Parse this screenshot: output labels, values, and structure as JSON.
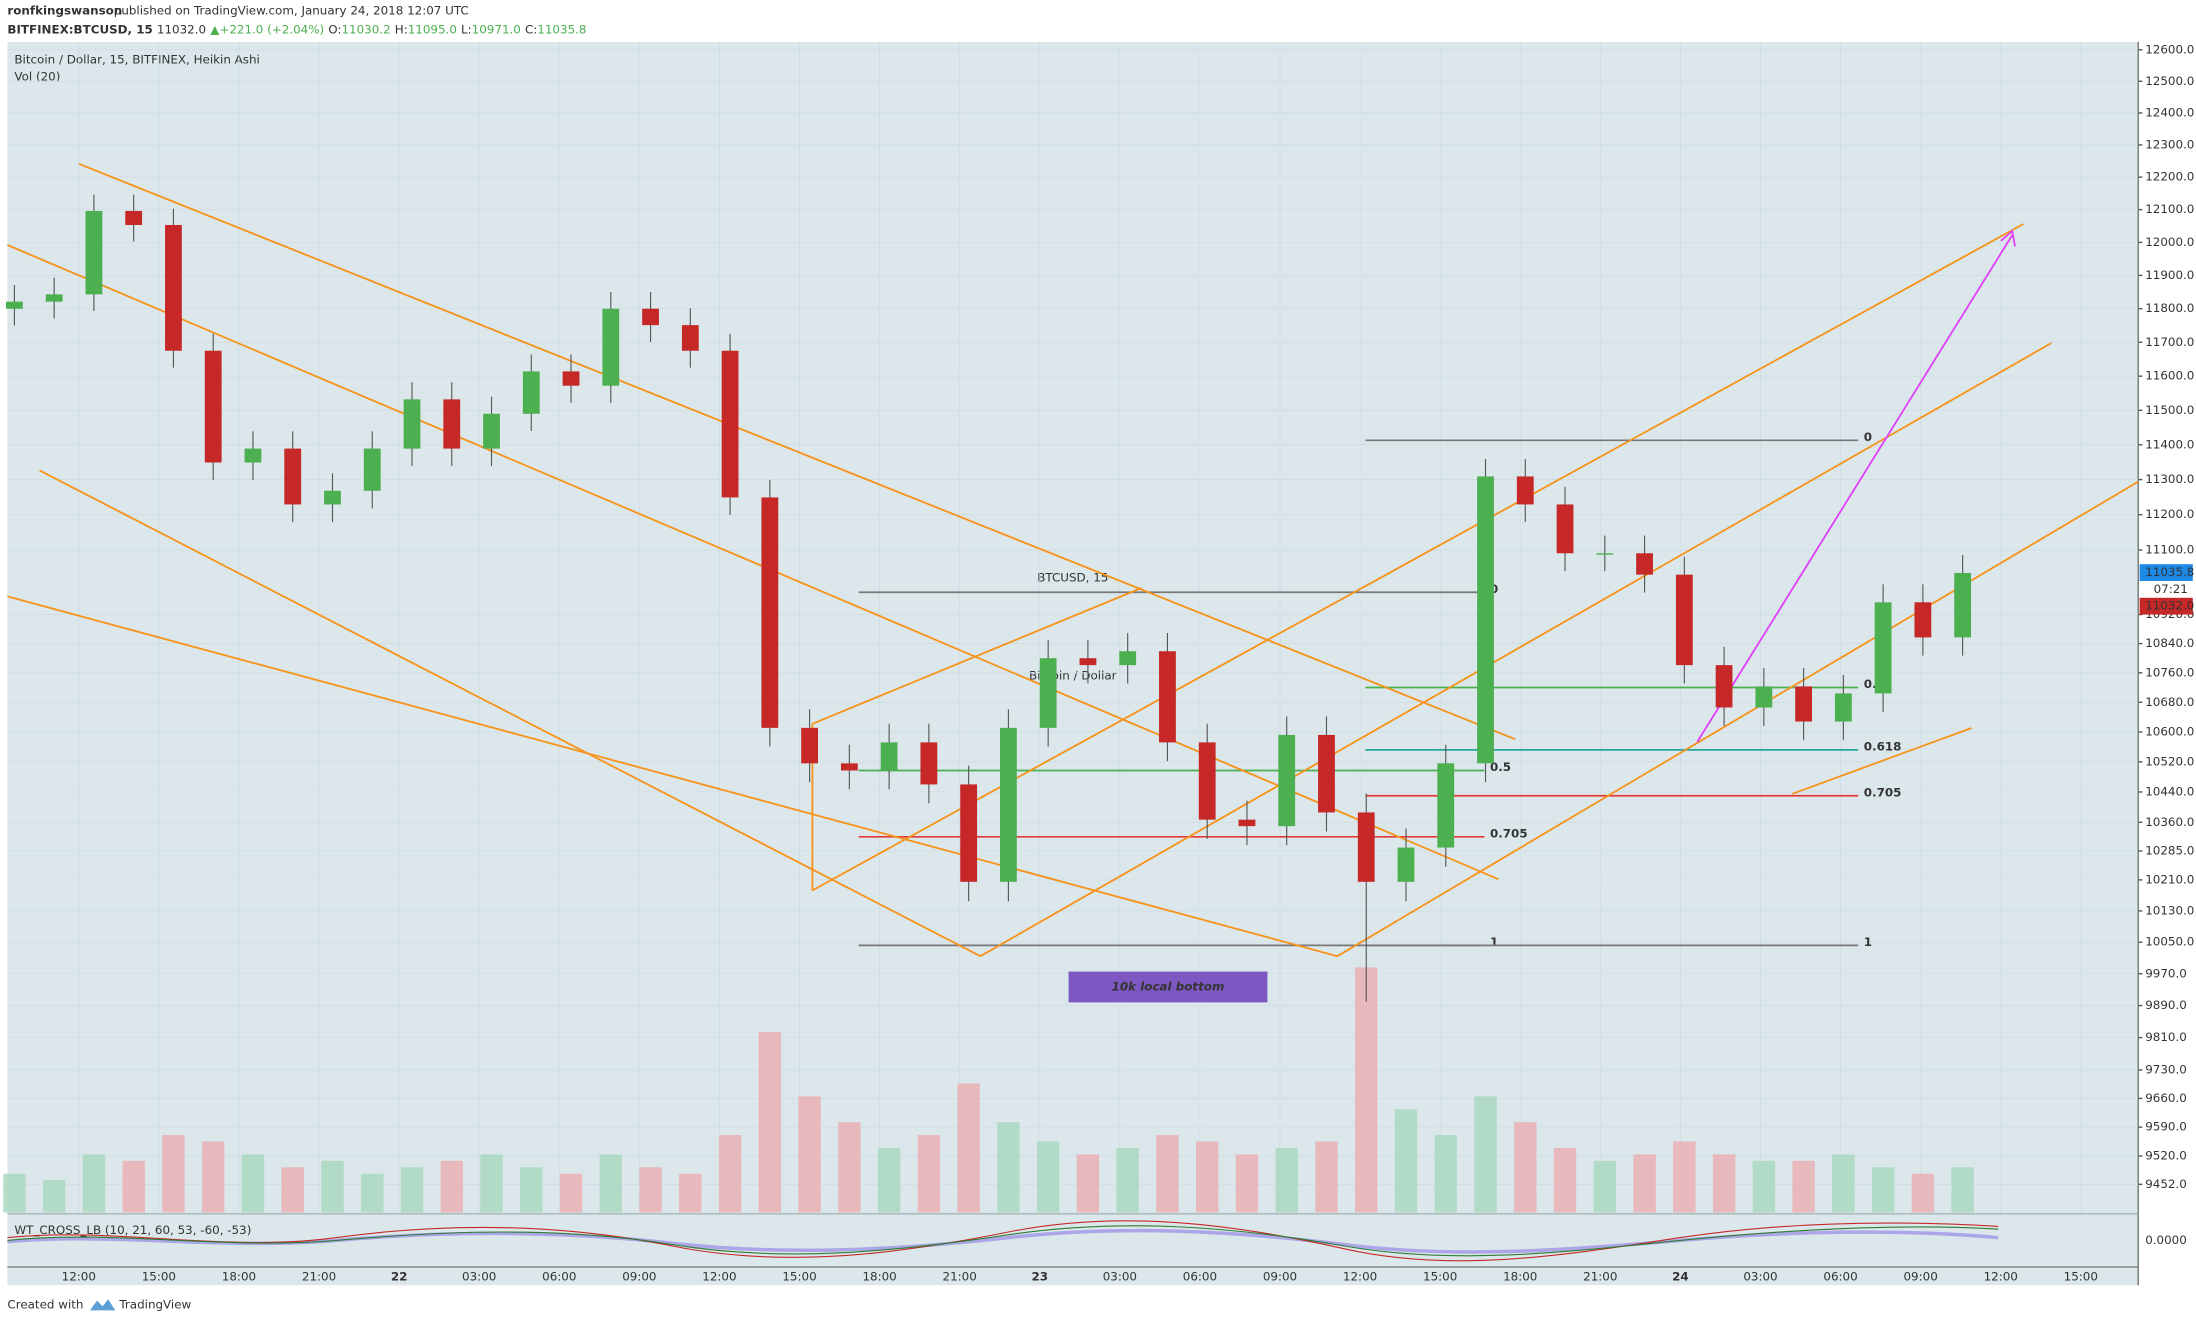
{
  "header": {
    "publisher": "ronfkingswanson",
    "published": "published on TradingView.com, January 24, 2018 12:07 UTC",
    "symbol": "BITFINEX:BTCUSD, 15",
    "last": "11032.0",
    "arrow": "▲",
    "change": "+221.0 (+2.04%)",
    "o_label": "O:",
    "o": "11030.2",
    "h_label": "H:",
    "h": "11095.0",
    "l_label": "L:",
    "l": "10971.0",
    "c_label": "C:",
    "c": "11035.8"
  },
  "legend": {
    "series": "Bitcoin / Dollar, 15, BITFINEX, Heikin Ashi",
    "volume": "Vol (20)"
  },
  "watermark": {
    "symbol": "BTCUSD, 15",
    "name": "Bitcoin / Dollar"
  },
  "annotation": "10k local bottom",
  "price_labels": {
    "last": "11035.8",
    "countdown": "07:21",
    "close": "11032.0"
  },
  "indicator": {
    "name": "WT_CROSS_LB (10, 21, 60, 53, -60, -53)",
    "value": "0.0000"
  },
  "footer": {
    "created": "Created with",
    "brand": "TradingView"
  },
  "chart_data": {
    "type": "candlestick",
    "log_scale": true,
    "grid": true,
    "up_color": "#4caf50",
    "down_color": "#c62828",
    "vol_up_color": "#a9d8c0",
    "vol_down_color": "#eab0b4",
    "ylim": [
      9385,
      12625
    ],
    "yticks": [
      {
        "value": 12600,
        "label": "12600.0"
      },
      {
        "value": 12500,
        "label": "12500.0"
      },
      {
        "value": 12400,
        "label": "12400.0"
      },
      {
        "value": 12300,
        "label": "12300.0"
      },
      {
        "value": 12200,
        "label": "12200.0"
      },
      {
        "value": 12100,
        "label": "12100.0"
      },
      {
        "value": 12000,
        "label": "12000.0"
      },
      {
        "value": 11900,
        "label": "11900.0"
      },
      {
        "value": 11800,
        "label": "11800.0"
      },
      {
        "value": 11700,
        "label": "11700.0"
      },
      {
        "value": 11600,
        "label": "11600.0"
      },
      {
        "value": 11500,
        "label": "11500.0"
      },
      {
        "value": 11400,
        "label": "11400.0"
      },
      {
        "value": 11300,
        "label": "11300.0"
      },
      {
        "value": 11200,
        "label": "11200.0"
      },
      {
        "value": 11100,
        "label": "11100.0"
      },
      {
        "value": 10920,
        "label": "10920.0"
      },
      {
        "value": 10840,
        "label": "10840.0"
      },
      {
        "value": 10760,
        "label": "10760.0"
      },
      {
        "value": 10680,
        "label": "10680.0"
      },
      {
        "value": 10600,
        "label": "10600.0"
      },
      {
        "value": 10520,
        "label": "10520.0"
      },
      {
        "value": 10440,
        "label": "10440.0"
      },
      {
        "value": 10360,
        "label": "10360.0"
      },
      {
        "value": 10285,
        "label": "10285.0"
      },
      {
        "value": 10210,
        "label": "10210.0"
      },
      {
        "value": 10130,
        "label": "10130.0"
      },
      {
        "value": 10050,
        "label": "10050.0"
      },
      {
        "value": 9970,
        "label": "9970.0"
      },
      {
        "value": 9890,
        "label": "9890.0"
      },
      {
        "value": 9810,
        "label": "9810.0"
      },
      {
        "value": 9730,
        "label": "9730.0"
      },
      {
        "value": 9660,
        "label": "9660.0"
      },
      {
        "value": 9590,
        "label": "9590.0"
      },
      {
        "value": 9520,
        "label": "9520.0"
      },
      {
        "value": 9452,
        "label": "9452.0"
      }
    ],
    "xticks": [
      "12:00",
      "15:00",
      "18:00",
      "21:00",
      "22",
      "03:00",
      "06:00",
      "09:00",
      "12:00",
      "15:00",
      "18:00",
      "21:00",
      "23",
      "03:00",
      "06:00",
      "09:00",
      "12:00",
      "15:00",
      "18:00",
      "21:00",
      "24",
      "03:00",
      "06:00",
      "09:00",
      "12:00",
      "15:00"
    ],
    "open": [
      11800,
      11821,
      11843,
      12096,
      12053,
      11675,
      11349,
      11389,
      11229,
      11268,
      11389,
      11532,
      11389,
      11490,
      11614,
      11572,
      11800,
      11751,
      11675,
      11249,
      10611,
      10516,
      10497,
      10572,
      10460,
      10205,
      10611,
      10800,
      10781,
      10819,
      10572,
      10367,
      10350,
      10592,
      10386,
      10205,
      10294,
      10516,
      11309,
      11229,
      11091,
      11091,
      11031,
      10781,
      10666,
      10723,
      10628,
      10704,
      10954,
      10857
    ],
    "high": [
      11871,
      11893,
      12146,
      12146,
      12103,
      11725,
      11439,
      11439,
      11318,
      11439,
      11582,
      11582,
      11540,
      11664,
      11664,
      11850,
      11850,
      11801,
      11725,
      11299,
      10661,
      10566,
      10622,
      10622,
      10510,
      10661,
      10850,
      10850,
      10869,
      10869,
      10622,
      10417,
      10642,
      10642,
      10436,
      10344,
      10566,
      11359,
      11359,
      11279,
      11141,
      11141,
      11081,
      10831,
      10773,
      10773,
      10754,
      11004,
      11004,
      11086
    ],
    "low": [
      11750,
      11771,
      11793,
      12003,
      11625,
      11299,
      11299,
      11179,
      11179,
      11218,
      11339,
      11339,
      11339,
      11440,
      11522,
      11522,
      11701,
      11625,
      11199,
      10561,
      10466,
      10447,
      10447,
      10410,
      10155,
      10155,
      10561,
      10731,
      10731,
      10522,
      10317,
      10300,
      10300,
      10336,
      9900,
      10155,
      10244,
      10466,
      11179,
      11041,
      11041,
      10981,
      10731,
      10616,
      10616,
      10578,
      10578,
      10654,
      10807,
      10807
    ],
    "close": [
      11821,
      11843,
      12096,
      12053,
      11675,
      11349,
      11389,
      11229,
      11268,
      11389,
      11532,
      11389,
      11490,
      11614,
      11572,
      11800,
      11751,
      11675,
      11249,
      10611,
      10516,
      10497,
      10572,
      10460,
      10205,
      10611,
      10800,
      10781,
      10819,
      10572,
      10367,
      10350,
      10592,
      10386,
      10205,
      10294,
      10516,
      11309,
      11229,
      11091,
      11091,
      11031,
      10781,
      10666,
      10723,
      10628,
      10704,
      10954,
      10857,
      11035.8
    ],
    "volume": [
      30,
      25,
      45,
      40,
      60,
      55,
      45,
      35,
      40,
      30,
      35,
      40,
      45,
      35,
      30,
      45,
      35,
      30,
      60,
      140,
      90,
      70,
      50,
      60,
      100,
      70,
      55,
      45,
      50,
      60,
      55,
      45,
      50,
      55,
      190,
      80,
      60,
      90,
      70,
      50,
      40,
      45,
      55,
      45,
      40,
      40,
      45,
      35,
      30,
      35
    ],
    "fib_a": [
      {
        "label": "0",
        "price": 10982,
        "color": "#787878"
      },
      {
        "label": "0.5",
        "price": 10497,
        "color": "#4caf50"
      },
      {
        "label": "0.705",
        "price": 10322,
        "color": "#e53935"
      },
      {
        "label": "1",
        "price": 10042,
        "color": "#787878"
      }
    ],
    "fib_b": [
      {
        "label": "0",
        "price": 11413,
        "color": "#787878"
      },
      {
        "label": "0.5",
        "price": 10720,
        "color": "#4caf50"
      },
      {
        "label": "0.618",
        "price": 10552,
        "color": "#26a69a"
      },
      {
        "label": "0.705",
        "price": 10430,
        "color": "#e53935"
      },
      {
        "label": "1",
        "price": 10042,
        "color": "#787878"
      }
    ]
  }
}
